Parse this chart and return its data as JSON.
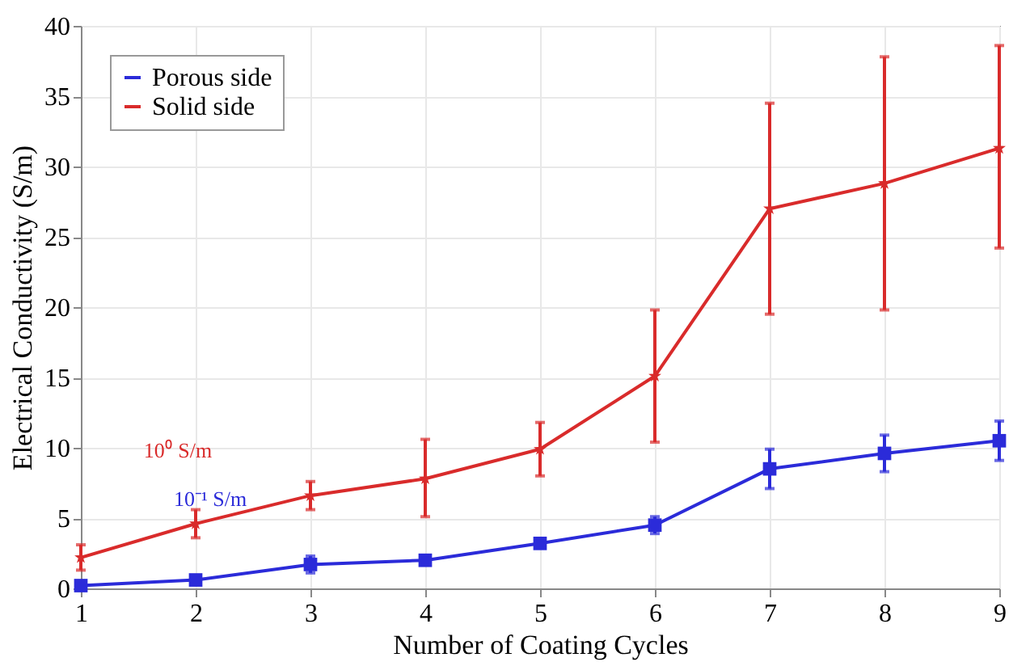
{
  "chart_data": {
    "type": "line",
    "xlabel": "Number of Coating Cycles",
    "ylabel": "Electrical Conductivity (S/m)",
    "x": [
      1,
      2,
      3,
      4,
      5,
      6,
      7,
      8,
      9
    ],
    "series": [
      {
        "name": "Porous side",
        "color": "#2b2bd9",
        "marker": "square",
        "values": [
          0.2,
          0.6,
          1.7,
          2.0,
          3.2,
          4.5,
          8.5,
          9.6,
          10.5
        ],
        "errors": [
          0.2,
          0.2,
          0.6,
          0.2,
          0.3,
          0.6,
          1.4,
          1.3,
          1.4
        ]
      },
      {
        "name": "Solid side",
        "color": "#d92b2b",
        "marker": "star",
        "values": [
          2.2,
          4.6,
          6.6,
          7.8,
          9.9,
          15.1,
          27.0,
          28.8,
          31.3
        ],
        "errors": [
          0.9,
          1.0,
          1.0,
          [
            5.1,
            10.6
          ],
          [
            8.0,
            11.8
          ],
          [
            10.4,
            19.8
          ],
          [
            19.5,
            34.5
          ],
          [
            19.8,
            37.8
          ],
          [
            24.2,
            38.6
          ]
        ]
      }
    ],
    "annotations": [
      "10⁰ S/m",
      "10⁻¹ S/m"
    ],
    "xlim": [
      1,
      9
    ],
    "xticks": [
      1,
      2,
      3,
      4,
      5,
      6,
      7,
      8,
      9
    ],
    "ylim": [
      0,
      40
    ],
    "yticks": [
      0,
      5,
      10,
      15,
      20,
      25,
      30,
      35,
      40
    ],
    "grid": true,
    "legend": "top left"
  }
}
